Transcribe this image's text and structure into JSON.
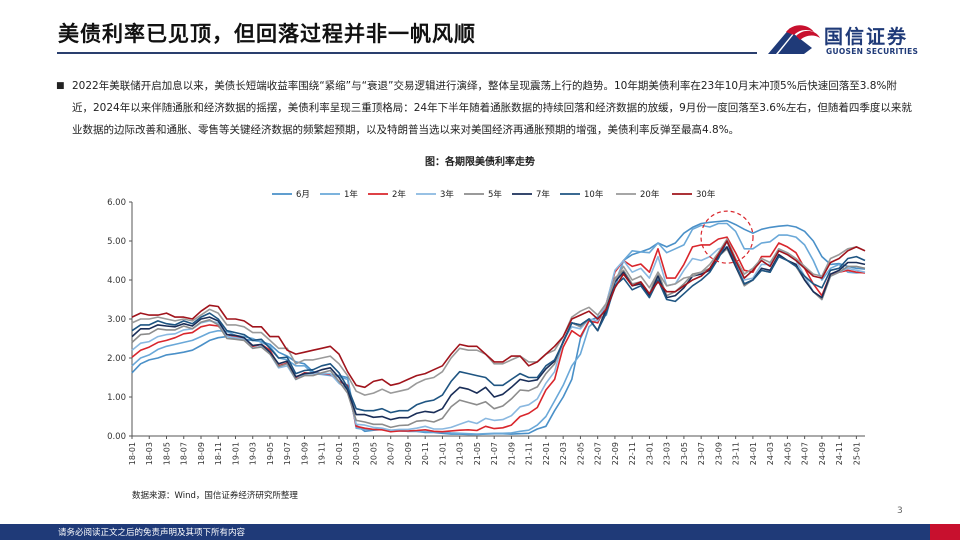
{
  "header": {
    "title": "美债利率已见顶，但回落过程并非一帆风顺"
  },
  "logo": {
    "name_cn": "国信证券",
    "name_en": "GUOSEN SECURITIES",
    "colors": {
      "blue": "#1f3a78",
      "red": "#c8102e"
    }
  },
  "bullet": {
    "marker": "■",
    "text": "2022年美联储开启加息以来，美债长短端收益率围绕“紧缩”与“衰退”交易逻辑进行演绎，整体呈现震荡上行的趋势。10年期美债利率在23年10月末冲顶5%后快速回落至3.8%附近，2024年以来伴随通胀和经济数据的摇摆，美债利率呈现三重顶格局：24年下半年随着通胀数据的持续回落和经济数据的放缓，9月份一度回落至3.6%左右，但随着四季度以来就业数据的边际改善和通胀、零售等关键经济数据的频繁超预期，以及特朗普当选以来对美国经济再通胀预期的增强，美债利率反弹至最高4.8%。"
  },
  "chart_title": "图：各期限美债利率走势",
  "source": "数据来源：Wind，国信证券经济研究所整理",
  "page_number": "3",
  "footer": {
    "disclaimer": "请务必阅读正文之后的免责声明及其项下所有内容"
  },
  "chart_data": {
    "type": "line",
    "title": "图：各期限美债利率走势",
    "xlabel": "",
    "ylabel": "",
    "ylim": [
      0,
      6
    ],
    "y_ticks": [
      "0.00",
      "1.00",
      "2.00",
      "3.00",
      "4.00",
      "5.00",
      "6.00"
    ],
    "grid": false,
    "legend_position": "top",
    "x": [
      "18-01",
      "18-02",
      "18-03",
      "18-04",
      "18-05",
      "18-06",
      "18-07",
      "18-08",
      "18-09",
      "18-10",
      "18-11",
      "18-12",
      "19-01",
      "19-02",
      "19-03",
      "19-04",
      "19-05",
      "19-06",
      "19-07",
      "19-08",
      "19-09",
      "19-10",
      "19-11",
      "19-12",
      "20-01",
      "20-02",
      "20-03",
      "20-04",
      "20-05",
      "20-06",
      "20-07",
      "20-08",
      "20-09",
      "20-10",
      "20-11",
      "20-12",
      "21-01",
      "21-02",
      "21-03",
      "21-04",
      "21-05",
      "21-06",
      "21-07",
      "21-08",
      "21-09",
      "21-10",
      "21-11",
      "21-12",
      "22-01",
      "22-02",
      "22-03",
      "22-04",
      "22-05",
      "22-06",
      "22-07",
      "22-08",
      "22-09",
      "22-10",
      "22-11",
      "22-12",
      "23-01",
      "23-02",
      "23-03",
      "23-04",
      "23-05",
      "23-06",
      "23-07",
      "23-08",
      "23-09",
      "23-10",
      "23-11",
      "23-12",
      "24-01",
      "24-02",
      "24-03",
      "24-04",
      "24-05",
      "24-06",
      "24-07",
      "24-08",
      "24-09",
      "24-10",
      "24-11",
      "24-12",
      "25-01",
      "25-02"
    ],
    "x_tick_labels": [
      "18-01",
      "18-03",
      "18-05",
      "18-07",
      "18-09",
      "18-11",
      "19-01",
      "19-03",
      "19-05",
      "19-07",
      "19-09",
      "19-11",
      "20-01",
      "20-03",
      "20-05",
      "20-07",
      "20-09",
      "20-11",
      "21-01",
      "21-03",
      "21-05",
      "21-07",
      "21-09",
      "21-11",
      "22-01",
      "22-03",
      "22-05",
      "22-07",
      "22-09",
      "22-11",
      "23-01",
      "23-03",
      "23-05",
      "23-07",
      "23-09",
      "23-11",
      "24-01",
      "24-03",
      "24-05",
      "24-07",
      "24-09",
      "24-11",
      "25-01"
    ],
    "series": [
      {
        "name": "6月",
        "color": "#4a90c8",
        "values": [
          1.62,
          1.85,
          1.95,
          2.0,
          2.08,
          2.11,
          2.15,
          2.2,
          2.32,
          2.45,
          2.52,
          2.55,
          2.5,
          2.48,
          2.45,
          2.42,
          2.35,
          2.15,
          2.05,
          1.9,
          1.85,
          1.65,
          1.6,
          1.58,
          1.55,
          1.5,
          0.28,
          0.12,
          0.15,
          0.17,
          0.15,
          0.14,
          0.12,
          0.12,
          0.09,
          0.09,
          0.07,
          0.05,
          0.05,
          0.04,
          0.04,
          0.05,
          0.06,
          0.06,
          0.05,
          0.06,
          0.07,
          0.18,
          0.25,
          0.65,
          1.0,
          1.45,
          2.5,
          2.95,
          3.05,
          3.2,
          3.8,
          4.5,
          4.65,
          4.72,
          4.8,
          4.95,
          4.85,
          4.95,
          5.2,
          5.35,
          5.45,
          5.48,
          5.5,
          5.52,
          5.42,
          5.3,
          5.2,
          5.3,
          5.35,
          5.38,
          5.4,
          5.36,
          5.25,
          5.0,
          4.6,
          4.4,
          4.42,
          4.35,
          4.3,
          4.28
        ]
      },
      {
        "name": "1年",
        "color": "#6aa8d8",
        "values": [
          1.8,
          2.0,
          2.08,
          2.22,
          2.3,
          2.35,
          2.4,
          2.45,
          2.55,
          2.65,
          2.7,
          2.68,
          2.58,
          2.55,
          2.5,
          2.4,
          2.3,
          2.0,
          1.95,
          1.8,
          1.8,
          1.6,
          1.58,
          1.55,
          1.52,
          1.45,
          0.2,
          0.17,
          0.17,
          0.17,
          0.14,
          0.13,
          0.12,
          0.12,
          0.11,
          0.1,
          0.1,
          0.08,
          0.07,
          0.06,
          0.05,
          0.06,
          0.07,
          0.07,
          0.08,
          0.12,
          0.15,
          0.28,
          0.5,
          0.9,
          1.3,
          1.8,
          2.1,
          2.8,
          3.0,
          3.1,
          3.9,
          4.5,
          4.75,
          4.72,
          4.7,
          4.95,
          4.7,
          4.8,
          4.9,
          5.3,
          5.4,
          5.36,
          5.45,
          5.45,
          5.25,
          4.8,
          4.8,
          4.95,
          4.98,
          5.15,
          5.15,
          5.1,
          4.9,
          4.5,
          4.0,
          4.3,
          4.4,
          4.2,
          4.18,
          4.2
        ]
      },
      {
        "name": "2年",
        "color": "#d9262c",
        "values": [
          2.02,
          2.2,
          2.28,
          2.4,
          2.45,
          2.52,
          2.62,
          2.65,
          2.8,
          2.85,
          2.82,
          2.6,
          2.55,
          2.5,
          2.3,
          2.35,
          2.2,
          1.8,
          1.87,
          1.5,
          1.62,
          1.6,
          1.6,
          1.58,
          1.4,
          1.3,
          0.25,
          0.2,
          0.17,
          0.16,
          0.11,
          0.13,
          0.13,
          0.14,
          0.16,
          0.12,
          0.11,
          0.13,
          0.15,
          0.16,
          0.14,
          0.25,
          0.19,
          0.21,
          0.28,
          0.5,
          0.58,
          0.73,
          1.18,
          1.45,
          2.28,
          2.7,
          2.55,
          2.95,
          2.9,
          3.4,
          4.2,
          4.5,
          4.35,
          4.41,
          4.2,
          4.8,
          4.05,
          4.05,
          4.4,
          4.85,
          4.9,
          4.9,
          5.05,
          5.1,
          4.7,
          4.25,
          4.2,
          4.6,
          4.6,
          4.95,
          4.85,
          4.7,
          4.3,
          3.9,
          3.6,
          4.15,
          4.2,
          4.25,
          4.2,
          4.18
        ]
      },
      {
        "name": "3年",
        "color": "#8ab8e0",
        "values": [
          2.2,
          2.38,
          2.42,
          2.55,
          2.6,
          2.62,
          2.72,
          2.75,
          2.9,
          2.95,
          2.9,
          2.55,
          2.52,
          2.48,
          2.25,
          2.3,
          2.1,
          1.75,
          1.8,
          1.45,
          1.58,
          1.6,
          1.6,
          1.6,
          1.35,
          1.2,
          0.3,
          0.28,
          0.22,
          0.2,
          0.15,
          0.17,
          0.17,
          0.2,
          0.25,
          0.18,
          0.18,
          0.22,
          0.3,
          0.38,
          0.32,
          0.45,
          0.4,
          0.42,
          0.52,
          0.75,
          0.8,
          0.95,
          1.35,
          1.65,
          2.45,
          2.8,
          2.75,
          3.0,
          2.95,
          3.4,
          4.25,
          4.5,
          4.2,
          4.3,
          4.05,
          4.6,
          3.85,
          3.9,
          4.25,
          4.55,
          4.5,
          4.6,
          4.8,
          4.85,
          4.5,
          4.0,
          4.05,
          4.4,
          4.4,
          4.8,
          4.65,
          4.5,
          4.1,
          3.7,
          3.5,
          4.1,
          4.2,
          4.3,
          4.25,
          4.2
        ]
      },
      {
        "name": "5年",
        "color": "#8c8c8c",
        "values": [
          2.4,
          2.6,
          2.62,
          2.75,
          2.72,
          2.72,
          2.82,
          2.75,
          2.92,
          2.98,
          2.85,
          2.5,
          2.48,
          2.45,
          2.25,
          2.28,
          2.1,
          1.78,
          1.85,
          1.45,
          1.55,
          1.55,
          1.62,
          1.68,
          1.4,
          1.1,
          0.4,
          0.36,
          0.3,
          0.3,
          0.22,
          0.27,
          0.28,
          0.38,
          0.4,
          0.36,
          0.45,
          0.75,
          0.92,
          0.86,
          0.8,
          0.88,
          0.7,
          0.77,
          0.95,
          1.18,
          1.16,
          1.26,
          1.6,
          1.85,
          2.42,
          2.9,
          2.8,
          3.0,
          2.7,
          3.3,
          4.05,
          4.25,
          3.9,
          3.95,
          3.65,
          4.2,
          3.6,
          3.7,
          3.9,
          4.15,
          4.2,
          4.3,
          4.6,
          4.8,
          4.35,
          3.85,
          4.0,
          4.25,
          4.2,
          4.65,
          4.5,
          4.35,
          4.0,
          3.7,
          3.5,
          4.1,
          4.2,
          4.35,
          4.35,
          4.3
        ]
      },
      {
        "name": "7年",
        "color": "#1a2e58",
        "values": [
          2.55,
          2.75,
          2.75,
          2.85,
          2.82,
          2.8,
          2.88,
          2.82,
          3.0,
          3.05,
          2.95,
          2.6,
          2.58,
          2.52,
          2.32,
          2.35,
          2.15,
          1.85,
          1.92,
          1.52,
          1.6,
          1.62,
          1.7,
          1.75,
          1.5,
          1.18,
          0.55,
          0.55,
          0.48,
          0.5,
          0.42,
          0.47,
          0.47,
          0.58,
          0.63,
          0.6,
          0.7,
          1.05,
          1.25,
          1.2,
          1.1,
          1.25,
          1.0,
          1.07,
          1.25,
          1.45,
          1.4,
          1.44,
          1.72,
          1.92,
          2.42,
          2.9,
          2.85,
          3.0,
          2.7,
          3.25,
          3.95,
          4.2,
          3.85,
          3.9,
          3.6,
          4.1,
          3.55,
          3.6,
          3.8,
          4.1,
          4.15,
          4.25,
          4.6,
          4.85,
          4.35,
          3.9,
          4.0,
          4.3,
          4.25,
          4.65,
          4.5,
          4.4,
          4.0,
          3.7,
          3.55,
          4.15,
          4.25,
          4.45,
          4.45,
          4.4
        ]
      },
      {
        "name": "10年",
        "color": "#1f5582",
        "values": [
          2.7,
          2.85,
          2.85,
          2.95,
          2.88,
          2.85,
          2.95,
          2.88,
          3.05,
          3.15,
          3.0,
          2.7,
          2.65,
          2.6,
          2.45,
          2.48,
          2.25,
          2.0,
          2.02,
          1.6,
          1.68,
          1.7,
          1.8,
          1.85,
          1.62,
          1.25,
          0.7,
          0.65,
          0.65,
          0.7,
          0.6,
          0.65,
          0.65,
          0.8,
          0.88,
          0.92,
          1.05,
          1.4,
          1.65,
          1.6,
          1.55,
          1.5,
          1.3,
          1.3,
          1.45,
          1.6,
          1.5,
          1.5,
          1.8,
          1.95,
          2.4,
          2.9,
          2.85,
          3.0,
          2.7,
          3.15,
          3.85,
          4.05,
          3.75,
          3.85,
          3.55,
          4.0,
          3.5,
          3.45,
          3.65,
          3.85,
          4.0,
          4.2,
          4.55,
          5.0,
          4.4,
          3.9,
          4.0,
          4.25,
          4.2,
          4.6,
          4.5,
          4.35,
          4.1,
          3.9,
          3.8,
          4.25,
          4.3,
          4.55,
          4.6,
          4.5
        ]
      },
      {
        "name": "20年",
        "color": "#9a9a9a",
        "values": [
          2.9,
          3.0,
          3.0,
          3.05,
          3.0,
          2.95,
          3.0,
          2.95,
          3.1,
          3.25,
          3.15,
          2.85,
          2.85,
          2.8,
          2.65,
          2.65,
          2.45,
          2.25,
          2.25,
          1.85,
          1.95,
          1.95,
          2.0,
          2.05,
          1.85,
          1.55,
          1.15,
          1.05,
          1.1,
          1.2,
          1.1,
          1.15,
          1.2,
          1.35,
          1.45,
          1.5,
          1.65,
          2.0,
          2.25,
          2.2,
          2.2,
          2.1,
          1.85,
          1.85,
          1.95,
          2.05,
          1.9,
          1.9,
          2.1,
          2.2,
          2.55,
          3.05,
          3.2,
          3.3,
          3.1,
          3.4,
          4.0,
          4.35,
          4.0,
          4.1,
          3.8,
          4.2,
          3.85,
          3.9,
          4.05,
          4.1,
          4.2,
          4.4,
          4.7,
          5.05,
          4.55,
          4.15,
          4.3,
          4.55,
          4.45,
          4.8,
          4.7,
          4.55,
          4.35,
          4.15,
          4.1,
          4.55,
          4.65,
          4.8,
          4.85,
          4.75
        ]
      },
      {
        "name": "30年",
        "color": "#a0141c",
        "values": [
          3.05,
          3.15,
          3.1,
          3.1,
          3.15,
          3.05,
          3.05,
          3.0,
          3.2,
          3.35,
          3.32,
          3.0,
          3.0,
          2.95,
          2.8,
          2.8,
          2.55,
          2.55,
          2.2,
          2.1,
          2.15,
          2.2,
          2.25,
          2.3,
          2.1,
          1.65,
          1.3,
          1.25,
          1.4,
          1.45,
          1.3,
          1.35,
          1.45,
          1.55,
          1.6,
          1.7,
          1.8,
          2.1,
          2.35,
          2.3,
          2.3,
          2.1,
          1.9,
          1.9,
          2.05,
          2.05,
          1.8,
          1.9,
          2.1,
          2.3,
          2.55,
          3.0,
          3.1,
          3.2,
          3.0,
          3.25,
          3.8,
          4.15,
          3.85,
          3.95,
          3.65,
          3.95,
          3.7,
          3.7,
          3.85,
          4.0,
          4.1,
          4.3,
          4.65,
          5.0,
          4.5,
          4.05,
          4.25,
          4.5,
          4.35,
          4.75,
          4.65,
          4.5,
          4.3,
          4.1,
          4.05,
          4.45,
          4.55,
          4.75,
          4.85,
          4.75
        ]
      }
    ],
    "annotations": [
      {
        "type": "dashed-circle",
        "color": "#d9262c",
        "x": "23-10",
        "y": 5.1
      }
    ]
  }
}
